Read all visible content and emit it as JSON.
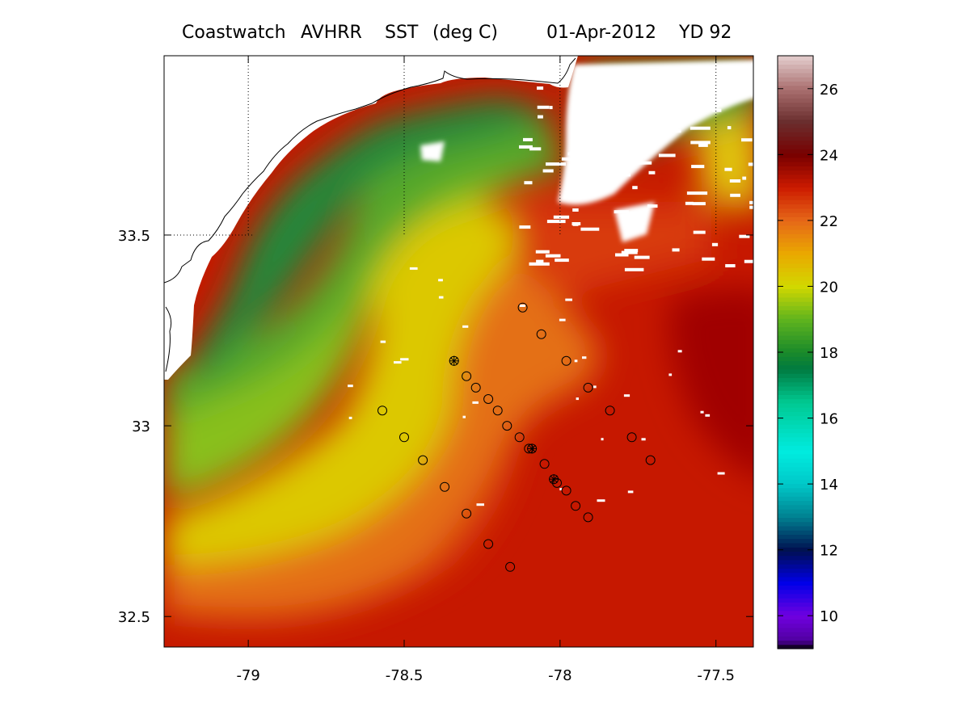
{
  "title": {
    "product": "Coastwatch",
    "sensor": "AVHRR",
    "variable": "SST",
    "units": "(deg C)",
    "date": "01-Apr-2012",
    "yearday": "YD 92"
  },
  "chart_data": [
    {
      "type": "heatmap",
      "xlim": [
        -79.27,
        -77.38
      ],
      "ylim": [
        32.42,
        33.97
      ],
      "x_ticks": [
        -79,
        -78.5,
        -78,
        -77.5
      ],
      "x_tick_labels": [
        "-79",
        "-78.5",
        "-78",
        "-77.5"
      ],
      "y_ticks": [
        32.5,
        33,
        33.5
      ],
      "y_tick_labels": [
        "32.5",
        "33",
        "33.5"
      ],
      "grid": "dotted lines at lon -79, -78.5, -78, -77.5 and lat 33.5 (over land/cloud only)",
      "coastline": [
        [
          -79.27,
          33.38
        ],
        [
          -79.2,
          33.43
        ],
        [
          -79.12,
          33.52
        ],
        [
          -79.05,
          33.6
        ],
        [
          -78.97,
          33.68
        ],
        [
          -78.88,
          33.76
        ],
        [
          -78.78,
          33.82
        ],
        [
          -78.66,
          33.85
        ],
        [
          -78.6,
          33.87
        ],
        [
          -78.55,
          33.89
        ],
        [
          -78.45,
          33.9
        ],
        [
          -78.35,
          33.91
        ],
        [
          -78.2,
          33.92
        ],
        [
          -78.1,
          33.91
        ],
        [
          -78.0,
          33.91
        ],
        [
          -77.95,
          33.95
        ]
      ],
      "fields": {
        "description": "Sea surface temperature; cool water (~17-18) along coast, warming to ~23-24 offshore to the southeast; cloud gaps (white) in the north-east",
        "coastal_min": 17,
        "offshore_max": 24
      },
      "stations": {
        "marker": "open circle",
        "points": [
          [
            -78.12,
            33.31
          ],
          [
            -78.06,
            33.24
          ],
          [
            -77.98,
            33.17
          ],
          [
            -77.91,
            33.1
          ],
          [
            -77.84,
            33.04
          ],
          [
            -77.77,
            32.97
          ],
          [
            -77.71,
            32.91
          ],
          [
            -78.34,
            33.17
          ],
          [
            -78.3,
            33.13
          ],
          [
            -78.27,
            33.1
          ],
          [
            -78.23,
            33.07
          ],
          [
            -78.2,
            33.04
          ],
          [
            -78.17,
            33.0
          ],
          [
            -78.13,
            32.97
          ],
          [
            -78.1,
            32.94
          ],
          [
            -78.09,
            32.94
          ],
          [
            -78.05,
            32.9
          ],
          [
            -78.02,
            32.86
          ],
          [
            -78.01,
            32.85
          ],
          [
            -77.98,
            32.83
          ],
          [
            -77.95,
            32.79
          ],
          [
            -77.91,
            32.76
          ],
          [
            -78.57,
            33.04
          ],
          [
            -78.5,
            32.97
          ],
          [
            -78.44,
            32.91
          ],
          [
            -78.37,
            32.84
          ],
          [
            -78.3,
            32.77
          ],
          [
            -78.23,
            32.69
          ],
          [
            -78.16,
            32.63
          ]
        ],
        "starred_points": [
          [
            -78.34,
            33.17
          ],
          [
            -78.09,
            32.94
          ],
          [
            -78.02,
            32.86
          ]
        ]
      }
    },
    {
      "type": "heatmap",
      "name": "colorbar",
      "ylim": [
        9,
        27
      ],
      "ticks": [
        10,
        12,
        14,
        16,
        18,
        20,
        22,
        24,
        26
      ],
      "tick_labels": [
        "10",
        "12",
        "14",
        "16",
        "18",
        "20",
        "22",
        "24",
        "26"
      ],
      "colormap": [
        [
          9.0,
          "#000000"
        ],
        [
          9.25,
          "#5000a0"
        ],
        [
          10.0,
          "#7000e0"
        ],
        [
          11.0,
          "#0000e8"
        ],
        [
          12.0,
          "#001050"
        ],
        [
          13.0,
          "#008090"
        ],
        [
          14.0,
          "#00c8c8"
        ],
        [
          15.0,
          "#00ece0"
        ],
        [
          16.5,
          "#00c890"
        ],
        [
          17.5,
          "#007a40"
        ],
        [
          18.0,
          "#1a8a2a"
        ],
        [
          19.0,
          "#5fb41e"
        ],
        [
          20.0,
          "#d2d800"
        ],
        [
          21.0,
          "#eaa800"
        ],
        [
          22.0,
          "#e66818"
        ],
        [
          23.0,
          "#cc1a00"
        ],
        [
          24.0,
          "#780000"
        ],
        [
          25.0,
          "#6a2e2e"
        ],
        [
          26.0,
          "#aa7070"
        ],
        [
          27.0,
          "#e4cece"
        ]
      ]
    }
  ]
}
